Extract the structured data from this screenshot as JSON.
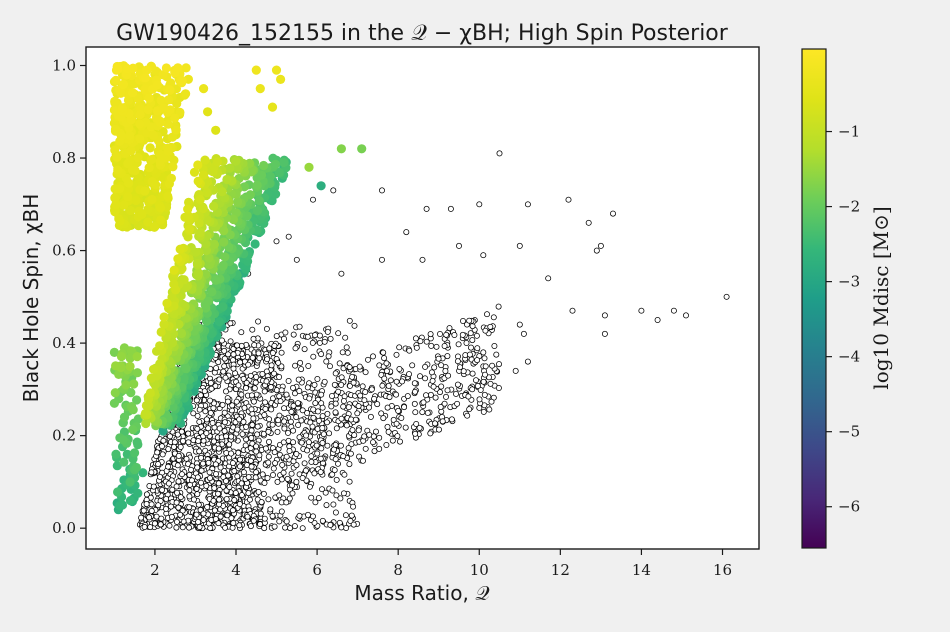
{
  "chart_data": {
    "type": "scatter",
    "title": "GW190426_152155 in the 𝒬 − χBH; High Spin Posterior",
    "xlabel": "Mass Ratio, 𝒬",
    "ylabel": "Black Hole Spin, χBH",
    "xlim": [
      0.3,
      16.9
    ],
    "ylim": [
      -0.045,
      1.04
    ],
    "xticks": [
      2,
      4,
      6,
      8,
      10,
      12,
      14,
      16
    ],
    "yticks": [
      0.0,
      0.2,
      0.4,
      0.6,
      0.8,
      1.0
    ],
    "xtick_labels": [
      "2",
      "4",
      "6",
      "8",
      "10",
      "12",
      "14",
      "16"
    ],
    "ytick_labels": [
      "0.0",
      "0.2",
      "0.4",
      "0.6",
      "0.8",
      "1.0"
    ],
    "grid": false,
    "colorbar": {
      "label": "log10 Mdisc [M⊙]",
      "colormap": "viridis",
      "range": [
        -6.55,
        0.1
      ],
      "ticks": [
        -1,
        -2,
        -3,
        -4,
        -5,
        -6
      ],
      "tick_labels": [
        "−1",
        "−2",
        "−3",
        "−4",
        "−5",
        "−6"
      ]
    },
    "series": [
      {
        "name": "",
        "marker": "open-circle",
        "color": "#000000",
        "description_points": [
          [
            10.5,
            0.81
          ],
          [
            12.2,
            0.71
          ],
          [
            11.2,
            0.7
          ],
          [
            13.3,
            0.68
          ],
          [
            10.0,
            0.7
          ],
          [
            12.7,
            0.66
          ],
          [
            9.3,
            0.69
          ],
          [
            8.7,
            0.69
          ],
          [
            7.6,
            0.73
          ],
          [
            6.4,
            0.73
          ],
          [
            5.9,
            0.71
          ],
          [
            16.1,
            0.5
          ],
          [
            15.1,
            0.46
          ],
          [
            14.8,
            0.47
          ],
          [
            14.4,
            0.45
          ],
          [
            14.0,
            0.47
          ],
          [
            13.1,
            0.46
          ],
          [
            13.1,
            0.42
          ],
          [
            12.3,
            0.47
          ],
          [
            11.7,
            0.54
          ],
          [
            11.0,
            0.61
          ],
          [
            11.0,
            0.44
          ],
          [
            11.1,
            0.42
          ],
          [
            11.2,
            0.36
          ],
          [
            10.9,
            0.34
          ],
          [
            12.9,
            0.6
          ],
          [
            13.0,
            0.61
          ],
          [
            9.5,
            0.61
          ],
          [
            8.2,
            0.64
          ],
          [
            8.6,
            0.58
          ],
          [
            10.1,
            0.59
          ],
          [
            7.6,
            0.58
          ],
          [
            10.1,
            0.38
          ],
          [
            10.0,
            0.26
          ],
          [
            9.1,
            0.23
          ],
          [
            5.0,
            0.62
          ],
          [
            5.3,
            0.63
          ],
          [
            4.3,
            0.55
          ],
          [
            5.5,
            0.58
          ],
          [
            6.6,
            0.55
          ],
          [
            3.6,
            0.44
          ],
          [
            6.3,
            0.38
          ]
        ],
        "clusters": [
          {
            "q_range": [
              1.6,
              4.6
            ],
            "spin_range": [
              0.0,
              0.4
            ],
            "count": 1150
          },
          {
            "q_range": [
              3.0,
              7.0
            ],
            "spin_range": [
              0.0,
              0.45
            ],
            "count": 550
          },
          {
            "q_range": [
              5.0,
              10.5
            ],
            "spin_range": [
              0.15,
              0.55
            ],
            "count": 520
          }
        ]
      },
      {
        "name": "",
        "marker": "filled-circle",
        "colored_by": "log10 Mdisc",
        "description_points": [
          [
            1.3,
            0.98,
            -0.1
          ],
          [
            1.8,
            0.99,
            -0.1
          ],
          [
            2.2,
            0.98,
            -0.15
          ],
          [
            2.6,
            0.97,
            -0.2
          ],
          [
            3.2,
            0.95,
            -0.3
          ],
          [
            4.5,
            0.99,
            -0.2
          ],
          [
            5.0,
            0.99,
            -0.25
          ],
          [
            4.6,
            0.95,
            -0.3
          ],
          [
            5.1,
            0.97,
            -0.3
          ],
          [
            3.5,
            0.86,
            -0.6
          ],
          [
            4.9,
            0.91,
            -0.4
          ],
          [
            3.3,
            0.9,
            -0.5
          ],
          [
            5.8,
            0.78,
            -1.5
          ],
          [
            6.6,
            0.82,
            -1.7
          ],
          [
            7.1,
            0.82,
            -1.8
          ],
          [
            6.1,
            0.74,
            -2.8
          ],
          [
            4.1,
            0.55,
            -3.3
          ],
          [
            4.05,
            0.54,
            -3.2
          ],
          [
            3.4,
            0.41,
            -3.8
          ],
          [
            3.1,
            0.36,
            -4.2
          ],
          [
            2.7,
            0.33,
            -4.5
          ],
          [
            2.3,
            0.26,
            -2.7
          ],
          [
            2.2,
            0.21,
            -3.0
          ],
          [
            1.7,
            0.12,
            -2.6
          ],
          [
            1.1,
            0.04,
            -2.8
          ],
          [
            1.2,
            0.05,
            -2.6
          ],
          [
            1.0,
            0.38,
            -1.8
          ],
          [
            1.0,
            0.27,
            -1.9
          ]
        ],
        "clusters": [
          {
            "q_range": [
              1.0,
              2.2
            ],
            "spin_range": [
              0.65,
              1.0
            ],
            "count": 500,
            "log_mdisc_range": [
              -1.0,
              -0.1
            ]
          },
          {
            "q_range": [
              1.5,
              4.0
            ],
            "spin_range": [
              0.3,
              0.8
            ],
            "count": 900,
            "log_mdisc_range": [
              -2.3,
              -0.5
            ]
          },
          {
            "q_range": [
              1.0,
              1.6
            ],
            "spin_range": [
              0.04,
              0.4
            ],
            "count": 90,
            "log_mdisc_range": [
              -2.8,
              -1.5
            ]
          }
        ]
      }
    ]
  }
}
